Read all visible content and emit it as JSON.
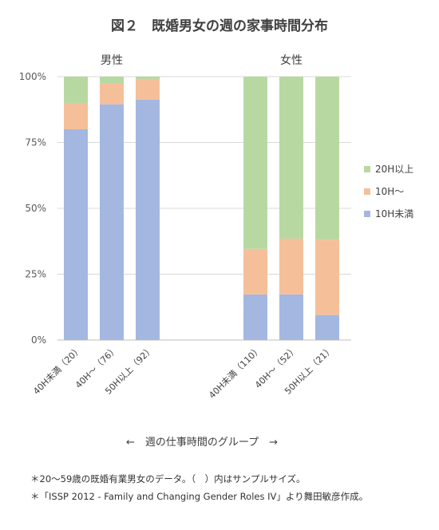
{
  "chart_data": {
    "type": "bar",
    "stacked": true,
    "normalized": true,
    "title": "図２　既婚男女の週の家事時間分布",
    "groups": [
      {
        "label": "男性",
        "categories": [
          "40H未満（20）",
          "40H～（76）",
          "50H以上（92）"
        ]
      },
      {
        "label": "女性",
        "categories": [
          "40H未満（110）",
          "40H～（52）",
          "50H以上（21）"
        ]
      }
    ],
    "categories": [
      "40H未満（20）",
      "40H～（76）",
      "50H以上（92）",
      "40H未満（110）",
      "40H～（52）",
      "50H以上（21）"
    ],
    "series": [
      {
        "name": "10H未満",
        "color": "#a3b7e1",
        "values": [
          80,
          89.5,
          91.3,
          17.3,
          17.3,
          9.5
        ]
      },
      {
        "name": "10H～",
        "color": "#f5bf9a",
        "values": [
          10,
          7.9,
          7.6,
          17.3,
          21.2,
          28.6
        ]
      },
      {
        "name": "20H以上",
        "color": "#b7d9a1",
        "values": [
          10,
          2.6,
          1.1,
          65.4,
          61.5,
          61.9
        ]
      }
    ],
    "y_ticks": [
      "0%",
      "25%",
      "50%",
      "75%",
      "100%"
    ],
    "ylim": [
      0,
      100
    ],
    "grid": true,
    "legend_position": "right",
    "legend_order": [
      "20H以上",
      "10H～",
      "10H未満"
    ],
    "xaxis_description": "←　週の仕事時間のグループ　→"
  },
  "notes": [
    "＊20～59歳の既婚有業男女のデータ。（　）内はサンプルサイズ。",
    "＊「ISSP 2012 - Family and Changing Gender Roles IV」より舞田敏彦作成。"
  ]
}
